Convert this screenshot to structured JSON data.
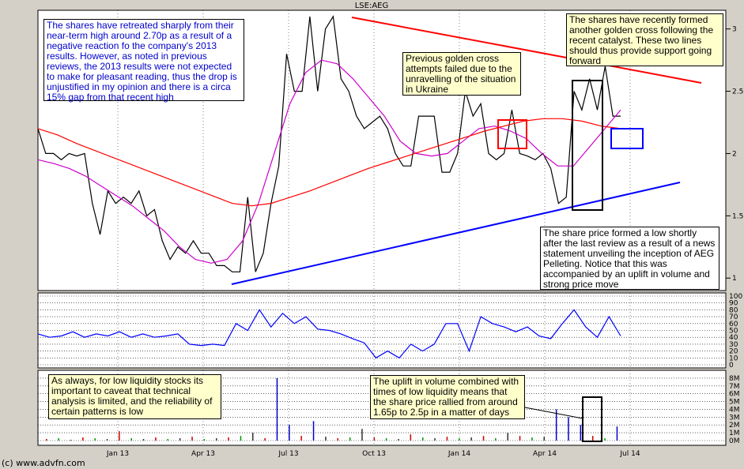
{
  "chart_data": [
    {
      "type": "line",
      "title": "LSE:AEG",
      "ylim": [
        0.9,
        3.15
      ],
      "yticks": [
        1,
        1.5,
        2,
        2.5,
        3
      ],
      "xticks": [
        "Jan 13",
        "Apr 13",
        "Jul 13",
        "Oct 13",
        "Jan 14",
        "Apr 14",
        "Jul 14"
      ],
      "series": [
        {
          "values": [
            2.2,
            2.0,
            2.0,
            1.95,
            2.0,
            1.98,
            2.0,
            1.6,
            1.35,
            1.7,
            1.6,
            1.65,
            1.6,
            1.7,
            1.5,
            1.55,
            1.3,
            1.15,
            1.25,
            1.2,
            1.3,
            1.2,
            1.2,
            1.1,
            1.1,
            1.05,
            1.05,
            1.65,
            1.05,
            1.2,
            1.6,
            1.9,
            2.8,
            2.5,
            2.5,
            3.1,
            2.5,
            3.0,
            3.1,
            2.6,
            2.5,
            2.3,
            2.2,
            2.25,
            2.3,
            2.2,
            2.0,
            1.9,
            1.9,
            2.3,
            2.3,
            2.3,
            1.85,
            1.85,
            2.0,
            2.5,
            2.3,
            2.4,
            2.0,
            1.95,
            2.0,
            2.35,
            2.0,
            1.98,
            1.95,
            2.0,
            1.88,
            1.6,
            1.65,
            2.5,
            2.35,
            2.6,
            2.35,
            2.7,
            2.3,
            2.3
          ],
          "color": "#000000"
        },
        {
          "values": [
            1.95,
            1.92,
            1.88,
            1.82,
            1.74,
            1.66,
            1.58,
            1.48,
            1.38,
            1.25,
            1.15,
            1.12,
            1.15,
            1.3,
            1.6,
            2.0,
            2.4,
            2.65,
            2.75,
            2.72,
            2.6,
            2.45,
            2.3,
            2.1,
            2.0,
            1.98,
            2.0,
            2.1,
            2.2,
            2.22,
            2.18,
            2.12,
            2.0,
            1.9,
            1.9,
            2.05,
            2.2,
            2.35
          ],
          "color": "#cc00cc"
        },
        {
          "values": [
            2.2,
            2.15,
            2.08,
            2.02,
            1.96,
            1.9,
            1.84,
            1.78,
            1.72,
            1.66,
            1.6,
            1.58,
            1.6,
            1.65,
            1.7,
            1.76,
            1.82,
            1.88,
            1.93,
            1.98,
            2.03,
            2.08,
            2.13,
            2.18,
            2.22,
            2.26,
            2.28,
            2.28,
            2.26,
            2.22,
            2.2
          ],
          "color": "#ff0000"
        }
      ]
    },
    {
      "type": "line",
      "ylim": [
        0,
        100
      ],
      "yticks": [
        0,
        10,
        20,
        30,
        40,
        50,
        60,
        70,
        80,
        90,
        100
      ],
      "series": [
        {
          "values": [
            45,
            40,
            42,
            48,
            40,
            45,
            42,
            48,
            40,
            45,
            40,
            42,
            45,
            30,
            28,
            30,
            28,
            60,
            50,
            80,
            55,
            75,
            60,
            70,
            52,
            50,
            45,
            38,
            32,
            10,
            20,
            10,
            30,
            20,
            30,
            60,
            60,
            20,
            70,
            60,
            55,
            48,
            55,
            42,
            38,
            60,
            80,
            55,
            40,
            70,
            42
          ],
          "color": "#0000ff"
        }
      ]
    },
    {
      "type": "bar",
      "ylim": [
        0,
        9
      ],
      "yticks": [
        "0M",
        "1M",
        "2M",
        "3M",
        "4M",
        "5M",
        "6M",
        "7M",
        "8M"
      ],
      "values": [
        0.2,
        0.3,
        0.1,
        0.4,
        0.3,
        0.2,
        1.2,
        0.3,
        0.2,
        0.4,
        0.2,
        0.3,
        0.5,
        0.2,
        0.3,
        0.4,
        0.6,
        1.0,
        0.3,
        8.0,
        2.0,
        0.6,
        2.5,
        0.5,
        0.3,
        0.4,
        1.5,
        0.4,
        0.3,
        0.2,
        0.8,
        0.4,
        0.3,
        0.5,
        0.3,
        0.4,
        0.6,
        0.3,
        1.0,
        0.6,
        0.4,
        0.5,
        4.0,
        3.0,
        2.0,
        0.6,
        0.3,
        1.8
      ],
      "color": "#333333"
    }
  ],
  "annotations": {
    "a1": "The shares have retreated sharply from their near-term high around 2.70p as a result of a negative reaction fo the company's 2013 results. However, as noted in previous reviews, the 2013 results were not expected to make for pleasant reading, thus the drop is unjustified in my opinion and there is a circa 15% gap from that recent high",
    "a2": "Previous golden cross attempts failed due to the unravelling of the situation in Ukraine",
    "a3": "The shares have recently formed another golden cross following the recent catalyst. These two lines should thus provide support going forward",
    "a4": "The share price formed a low shortly after the last review as a result of a news statement unveiling the inception of AEG Pelleting. Notice that this was accompanied by an uplift in volume and strong price move",
    "a5": "As always, for low liquidity stocks its important to caveat that technical analysis is limited, and the reliability of certain patterns is low",
    "a6": "The uplift in volume combined with times of low liquidity means that the share price rallied from around 1.65p to 2.5p in a matter of days"
  },
  "credit": "(c) www.advfn.com"
}
